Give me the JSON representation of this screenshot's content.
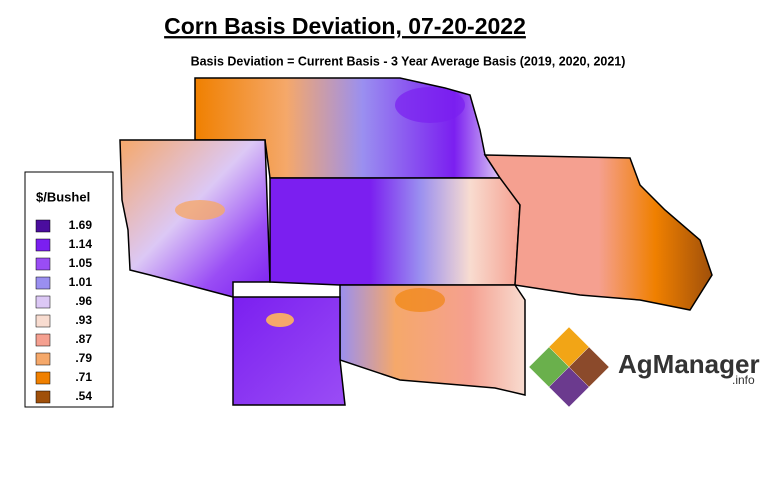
{
  "title": "Corn Basis Deviation, 07-20-2022",
  "subtitle": "Basis Deviation = Current Basis - 3 Year Average Basis (2019, 2020, 2021)",
  "legend": {
    "title": "$/Bushel",
    "items": [
      {
        "label": "1.69",
        "color": "#4b0d9e"
      },
      {
        "label": "1.14",
        "color": "#7b1ff0"
      },
      {
        "label": "1.05",
        "color": "#9a4df5"
      },
      {
        "label": "1.01",
        "color": "#9a8ff0"
      },
      {
        "label": ".96",
        "color": "#dcc8f5"
      },
      {
        "label": ".93",
        "color": "#f8dcd0"
      },
      {
        "label": ".87",
        "color": "#f5a090"
      },
      {
        "label": ".79",
        "color": "#f5a86a"
      },
      {
        "label": ".71",
        "color": "#f08000"
      },
      {
        "label": ".54",
        "color": "#a0500a"
      }
    ]
  },
  "logo": {
    "name": "AgManager",
    "suffix": ".info"
  }
}
